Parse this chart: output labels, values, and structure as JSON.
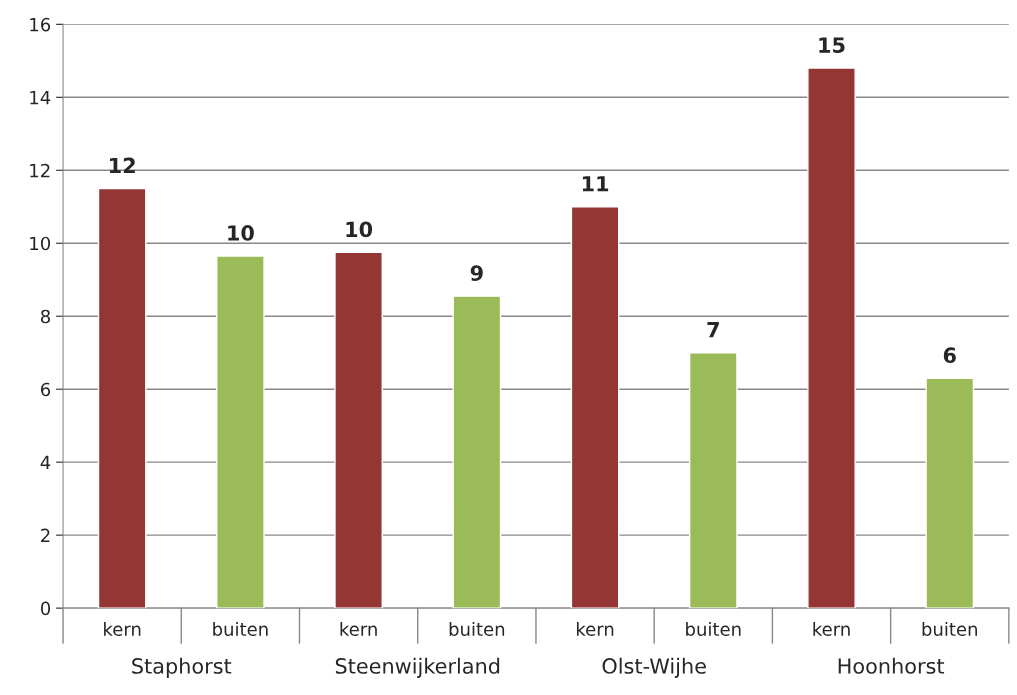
{
  "chart_data": {
    "type": "bar",
    "categories": [
      "kern",
      "buiten",
      "kern",
      "buiten",
      "kern",
      "buiten",
      "kern",
      "buiten"
    ],
    "values": [
      11.5,
      9.65,
      9.75,
      8.55,
      11.0,
      7.0,
      14.8,
      6.3
    ],
    "colors": [
      "#943634",
      "#9bbb59",
      "#943634",
      "#9bbb59",
      "#943634",
      "#9bbb59",
      "#943634",
      "#9bbb59"
    ],
    "value_labels": [
      "12",
      "10",
      "10",
      "9",
      "11",
      "7",
      "15",
      "6"
    ],
    "annotations": [
      "Staphorst",
      "Steenwijkerland",
      "Olst-Wijhe",
      "Hoonhorst"
    ],
    "ylim": [
      0,
      16
    ],
    "yticks": [
      0,
      2,
      4,
      6,
      8,
      10,
      12,
      14,
      16
    ],
    "grid": "y",
    "legend": false
  }
}
